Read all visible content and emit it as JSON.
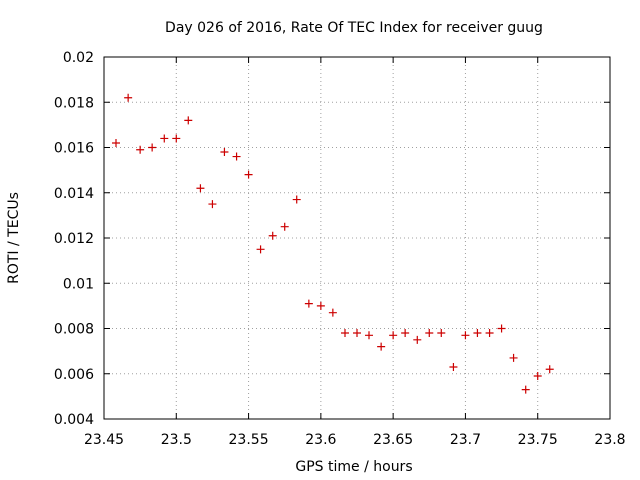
{
  "chart_data": {
    "type": "scatter",
    "title": "Day 026 of 2016, Rate Of TEC Index for receiver guug",
    "xlabel": "GPS time / hours",
    "ylabel": "ROTI / TECUs",
    "xlim": [
      23.45,
      23.8
    ],
    "ylim": [
      0.004,
      0.02
    ],
    "xticks": [
      "23.45",
      "23.5",
      "23.55",
      "23.6",
      "23.65",
      "23.7",
      "23.75",
      "23.8"
    ],
    "yticks": [
      "0.004",
      "0.006",
      "0.008",
      "0.01",
      "0.012",
      "0.014",
      "0.016",
      "0.018",
      "0.02"
    ],
    "grid": true,
    "marker": "+",
    "marker_color": "#cc0000",
    "series": [
      {
        "name": "ROTI",
        "x": [
          23.4583,
          23.4667,
          23.475,
          23.4833,
          23.4917,
          23.5,
          23.5083,
          23.5167,
          23.525,
          23.5333,
          23.5417,
          23.55,
          23.5583,
          23.5667,
          23.575,
          23.5833,
          23.5917,
          23.6,
          23.6083,
          23.6167,
          23.625,
          23.6333,
          23.6417,
          23.65,
          23.6583,
          23.6667,
          23.675,
          23.6833,
          23.6917,
          23.7,
          23.7083,
          23.7167,
          23.725,
          23.7333,
          23.7417,
          23.75,
          23.7583
        ],
        "y": [
          0.0162,
          0.0182,
          0.0159,
          0.016,
          0.0164,
          0.0164,
          0.0172,
          0.0142,
          0.0135,
          0.0158,
          0.0156,
          0.0148,
          0.0115,
          0.0121,
          0.0125,
          0.0137,
          0.0091,
          0.009,
          0.0087,
          0.0078,
          0.0078,
          0.0077,
          0.0072,
          0.0077,
          0.0078,
          0.0075,
          0.0078,
          0.0078,
          0.0063,
          0.0077,
          0.0078,
          0.0078,
          0.008,
          0.0067,
          0.0053,
          0.0059,
          0.0062
        ]
      }
    ]
  }
}
